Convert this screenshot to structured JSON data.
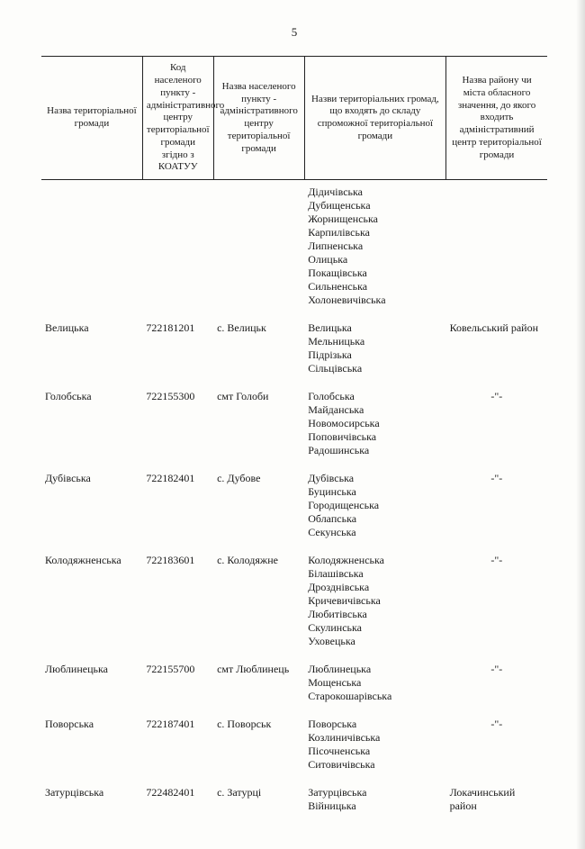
{
  "page_number": "5",
  "headers": {
    "col1": "Назва територіальної громади",
    "col2": "Код населеного пункту - адміністративного центру територіальної громади згідно з КОАТУУ",
    "col3": "Назва населеного пункту - адміністративного центру територіальної громади",
    "col4": "Назви територіальних громад, що входять до складу спроможної територіальної громади",
    "col5": "Назва району чи міста обласного значення, до якого входить адміністративний центр територіальної громади"
  },
  "rows": [
    {
      "name": "",
      "code": "",
      "center": "",
      "members": [
        "Дідичівська",
        "Дубищенська",
        "Жорнищенська",
        "Карпилівська",
        "Липненська",
        "Олицька",
        "Покащівська",
        "Сильненська",
        "Холоневичівська"
      ],
      "district": ""
    },
    {
      "name": "Велицька",
      "code": "722181201",
      "center": "с. Велицьк",
      "members": [
        "Велицька",
        "Мельницька",
        "Підрізька",
        "Сільцівська"
      ],
      "district": "Ковельський район"
    },
    {
      "name": "Голобська",
      "code": "722155300",
      "center": "смт Голоби",
      "members": [
        "Голобська",
        "Майданська",
        "Новомосирська",
        "Поповичівська",
        "Радошинська"
      ],
      "district": "-\"-"
    },
    {
      "name": "Дубівська",
      "code": "722182401",
      "center": "с. Дубове",
      "members": [
        "Дубівська",
        "Буцинська",
        "Городищенська",
        "Облапська",
        "Секунська"
      ],
      "district": "-\"-"
    },
    {
      "name": "Колодяжненська",
      "code": "722183601",
      "center": "с. Колодяжне",
      "members": [
        "Колодяжненська",
        "Білашівська",
        "Дрозднівська",
        "Кричевичівська",
        "Любитівська",
        "Скулинська",
        "Уховецька"
      ],
      "district": "-\"-"
    },
    {
      "name": "Люблинецька",
      "code": "722155700",
      "center": "смт Люблинець",
      "members": [
        "Люблинецька",
        "Мощенська",
        "Старокошарівська"
      ],
      "district": "-\"-"
    },
    {
      "name": "Поворська",
      "code": "722187401",
      "center": "с. Поворськ",
      "members": [
        "Поворська",
        "Козлиничівська",
        "Пісочненська",
        "Ситовичівська"
      ],
      "district": "-\"-"
    },
    {
      "name": "Затурцівська",
      "code": "722482401",
      "center": "с. Затурці",
      "members": [
        "Затурцівська",
        "Війницька"
      ],
      "district": "Локачинський район"
    }
  ]
}
